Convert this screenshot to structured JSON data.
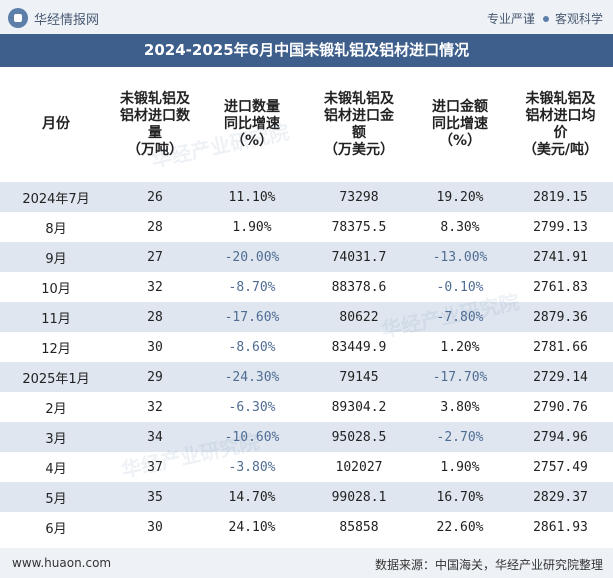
{
  "header": {
    "brand": "华经情报网",
    "tagline_left": "专业严谨",
    "tagline_right": "客观科学"
  },
  "title": "2024-2025年6月中国未锻轧铝及铝材进口情况",
  "table": {
    "columns": [
      [
        "月份"
      ],
      [
        "未锻轧铝及",
        "铝材进口数",
        "量",
        "（万吨）"
      ],
      [
        "进口数量",
        "同比增速",
        "（%）"
      ],
      [
        "未锻轧铝及",
        "铝材进口金",
        "额",
        "（万美元）"
      ],
      [
        "进口金额",
        "同比增速",
        "（%）"
      ],
      [
        "未锻轧铝及",
        "铝材进口均",
        "价",
        "（美元/吨）"
      ]
    ],
    "rows": [
      [
        "2024年7月",
        "26",
        "11.10%",
        "73298",
        "19.20%",
        "2819.15"
      ],
      [
        "8月",
        "28",
        "1.90%",
        "78375.5",
        "8.30%",
        "2799.13"
      ],
      [
        "9月",
        "27",
        "-20.00%",
        "74031.7",
        "-13.00%",
        "2741.91"
      ],
      [
        "10月",
        "32",
        "-8.70%",
        "88378.6",
        "-0.10%",
        "2761.83"
      ],
      [
        "11月",
        "28",
        "-17.60%",
        "80622",
        "-7.80%",
        "2879.36"
      ],
      [
        "12月",
        "30",
        "-8.60%",
        "83449.9",
        "1.20%",
        "2781.66"
      ],
      [
        "2025年1月",
        "29",
        "-24.30%",
        "79145",
        "-17.70%",
        "2729.14"
      ],
      [
        "2月",
        "32",
        "-6.30%",
        "89304.2",
        "3.80%",
        "2790.76"
      ],
      [
        "3月",
        "34",
        "-10.60%",
        "95028.5",
        "-2.70%",
        "2794.96"
      ],
      [
        "4月",
        "37",
        "-3.80%",
        "102027",
        "1.90%",
        "2757.49"
      ],
      [
        "5月",
        "35",
        "14.70%",
        "99028.1",
        "16.70%",
        "2829.37"
      ],
      [
        "6月",
        "30",
        "24.10%",
        "85858",
        "22.60%",
        "2861.93"
      ]
    ]
  },
  "watermark": "华经产业研究院",
  "footer": {
    "website": "www.huaon.com",
    "source": "数据来源：中国海关，华经产业研究院整理"
  }
}
